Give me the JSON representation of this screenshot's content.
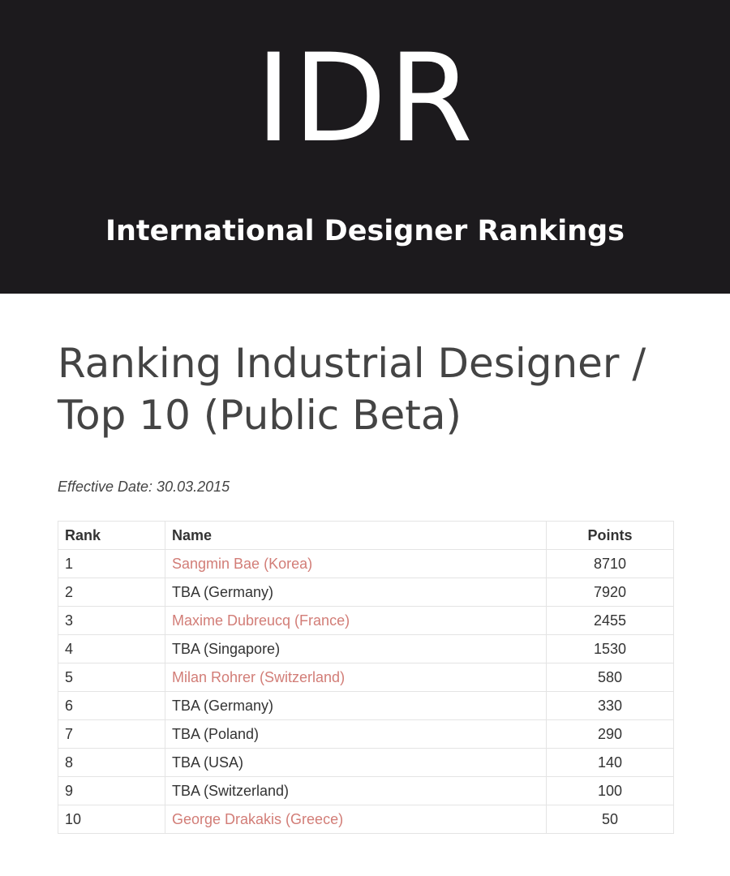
{
  "header": {
    "logo": "IDR",
    "tagline": "International Designer Rankings"
  },
  "heading": {
    "lines": [
      "Ranking Industrial Designer /",
      "Top 10 (Public Beta)"
    ]
  },
  "effective_date": "Effective Date: 30.03.2015",
  "table": {
    "columns": [
      "Rank",
      "Name",
      "Points"
    ],
    "rows": [
      {
        "rank": 1,
        "name": "Sangmin Bae (Korea)",
        "points": 8710,
        "link": true
      },
      {
        "rank": 2,
        "name": "TBA (Germany)",
        "points": 7920,
        "link": false
      },
      {
        "rank": 3,
        "name": "Maxime Dubreucq (France)",
        "points": 2455,
        "link": true
      },
      {
        "rank": 4,
        "name": "TBA (Singapore)",
        "points": 1530,
        "link": false
      },
      {
        "rank": 5,
        "name": "Milan Rohrer (Switzerland)",
        "points": 580,
        "link": true
      },
      {
        "rank": 6,
        "name": "TBA (Germany)",
        "points": 330,
        "link": false
      },
      {
        "rank": 7,
        "name": "TBA (Poland)",
        "points": 290,
        "link": false
      },
      {
        "rank": 8,
        "name": "TBA (USA)",
        "points": 140,
        "link": false
      },
      {
        "rank": 9,
        "name": "TBA (Switzerland)",
        "points": 100,
        "link": false
      },
      {
        "rank": 10,
        "name": "George Drakakis (Greece)",
        "points": 50,
        "link": true
      }
    ]
  }
}
